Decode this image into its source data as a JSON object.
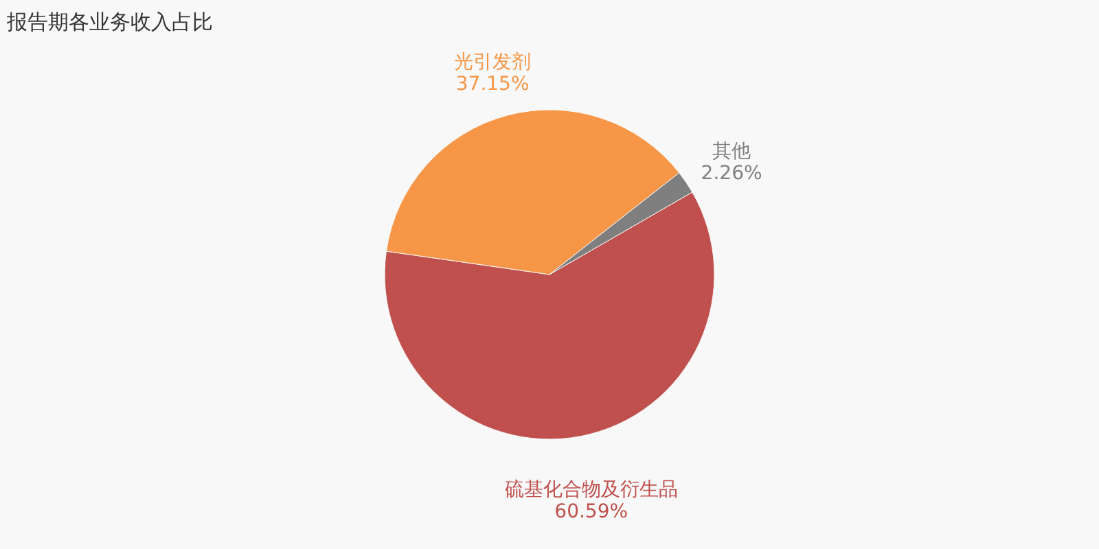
{
  "chart_data": {
    "type": "pie",
    "title": "报告期各业务收入占比",
    "categories": [
      "硫基化合物及衍生品",
      "光引发剂",
      "其他"
    ],
    "values": [
      60.59,
      37.15,
      2.26
    ],
    "colors": [
      "#c0504d",
      "#f79646",
      "#7f7f7f"
    ],
    "value_labels": [
      "60.59%",
      "37.15%",
      "2.26%"
    ],
    "legend": false
  }
}
